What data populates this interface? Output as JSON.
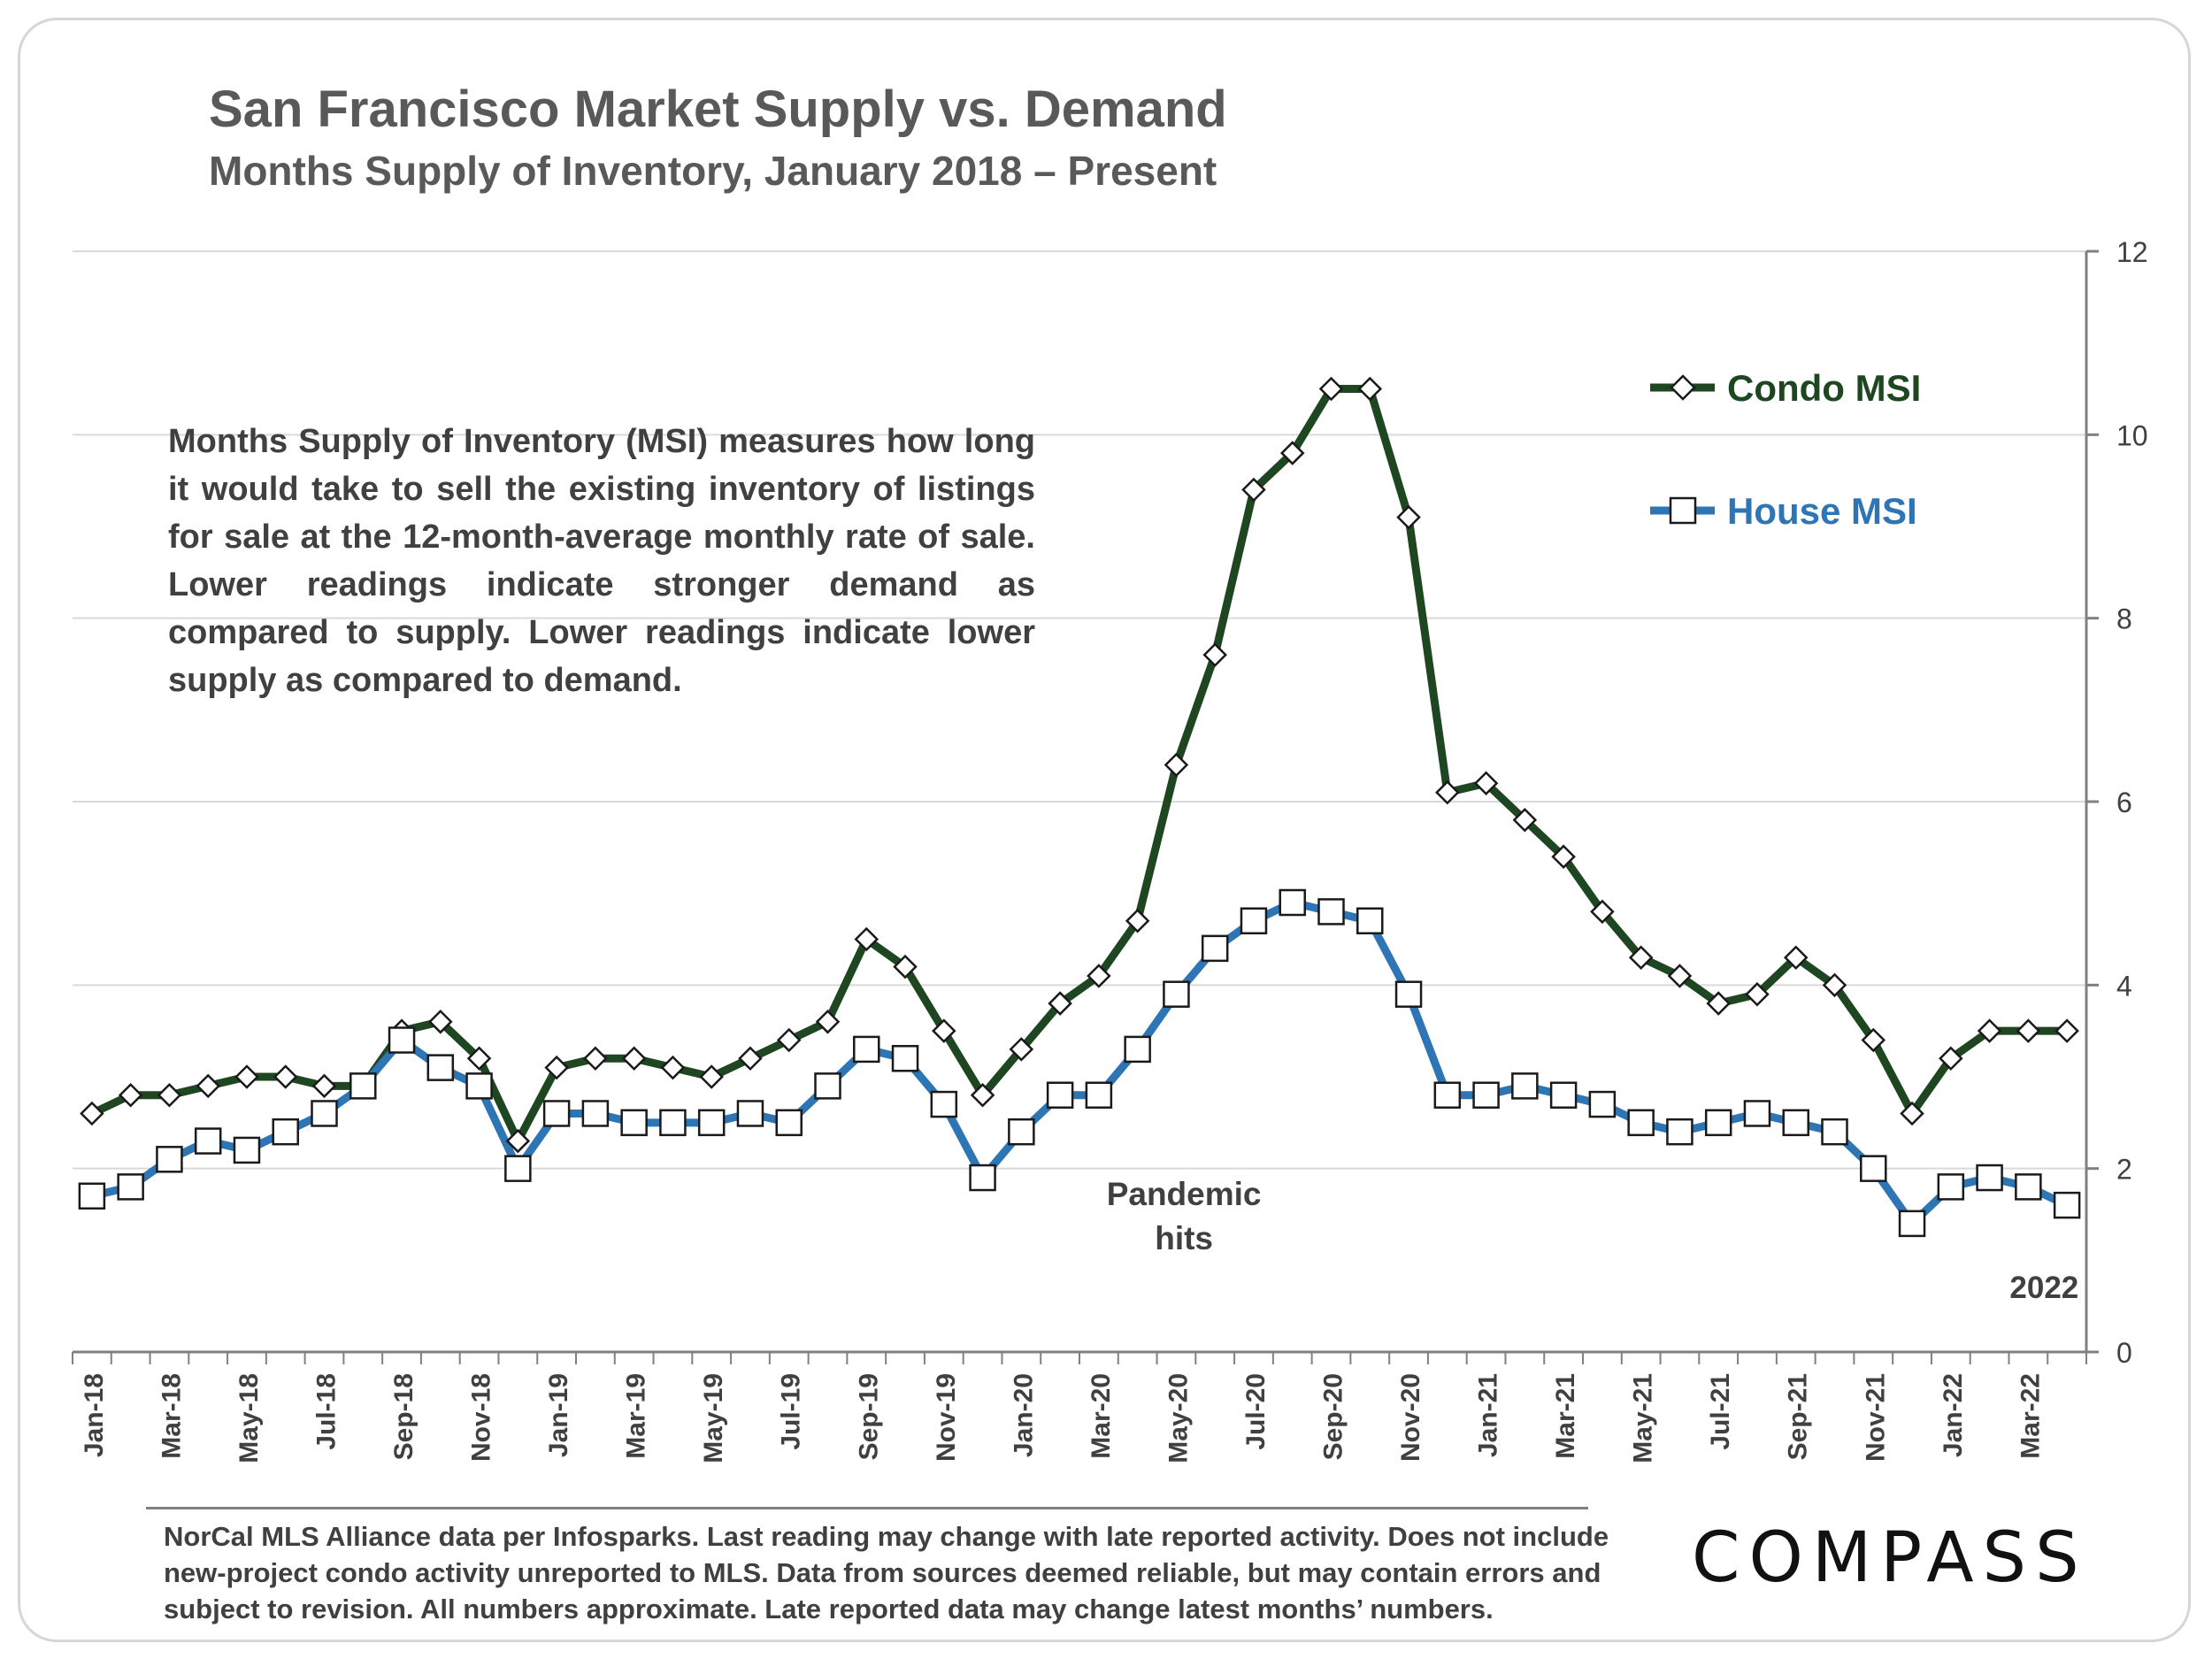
{
  "chart_data": {
    "type": "line",
    "title": "San Francisco Market Supply vs. Demand",
    "subtitle": "Months Supply of Inventory, January 2018 – Present",
    "x": [
      "Jan-18",
      "Feb-18",
      "Mar-18",
      "Apr-18",
      "May-18",
      "Jun-18",
      "Jul-18",
      "Aug-18",
      "Sep-18",
      "Oct-18",
      "Nov-18",
      "Dec-18",
      "Jan-19",
      "Feb-19",
      "Mar-19",
      "Apr-19",
      "May-19",
      "Jun-19",
      "Jul-19",
      "Aug-19",
      "Sep-19",
      "Oct-19",
      "Nov-19",
      "Dec-19",
      "Jan-20",
      "Feb-20",
      "Mar-20",
      "Apr-20",
      "May-20",
      "Jun-20",
      "Jul-20",
      "Aug-20",
      "Sep-20",
      "Oct-20",
      "Nov-20",
      "Dec-20",
      "Jan-21",
      "Feb-21",
      "Mar-21",
      "Apr-21",
      "May-21",
      "Jun-21",
      "Jul-21",
      "Aug-21",
      "Sep-21",
      "Oct-21",
      "Nov-21",
      "Dec-21",
      "Jan-22",
      "Feb-22",
      "Mar-22",
      "Apr-22"
    ],
    "tick_labels": [
      "Jan-18",
      "Mar-18",
      "May-18",
      "Jul-18",
      "Sep-18",
      "Nov-18",
      "Jan-19",
      "Mar-19",
      "May-19",
      "Jul-19",
      "Sep-19",
      "Nov-19",
      "Jan-20",
      "Mar-20",
      "May-20",
      "Jul-20",
      "Sep-20",
      "Nov-20",
      "Jan-21",
      "Mar-21",
      "May-21",
      "Jul-21",
      "Sep-21",
      "Nov-21",
      "Jan-22",
      "Mar-22"
    ],
    "series": [
      {
        "name": "Condo MSI",
        "color": "#1e4620",
        "marker": "diamond",
        "values": [
          2.6,
          2.8,
          2.8,
          2.9,
          3.0,
          3.0,
          2.9,
          2.9,
          3.5,
          3.6,
          3.2,
          2.3,
          3.1,
          3.2,
          3.2,
          3.1,
          3.0,
          3.2,
          3.4,
          3.6,
          4.5,
          4.2,
          3.5,
          2.8,
          3.3,
          3.8,
          4.1,
          4.7,
          6.4,
          7.6,
          9.4,
          9.8,
          10.5,
          10.5,
          9.1,
          6.1,
          6.2,
          5.8,
          5.4,
          4.8,
          4.3,
          4.1,
          3.8,
          3.9,
          4.3,
          4.0,
          3.4,
          2.6,
          3.2,
          3.5,
          3.5,
          3.5
        ]
      },
      {
        "name": "House MSI",
        "color": "#2e75b6",
        "marker": "square",
        "values": [
          1.7,
          1.8,
          2.1,
          2.3,
          2.2,
          2.4,
          2.6,
          2.9,
          3.4,
          3.1,
          2.9,
          2.0,
          2.6,
          2.6,
          2.5,
          2.5,
          2.5,
          2.6,
          2.5,
          2.9,
          3.3,
          3.2,
          2.7,
          1.9,
          2.4,
          2.8,
          2.8,
          3.3,
          3.9,
          4.4,
          4.7,
          4.9,
          4.8,
          4.7,
          3.9,
          2.8,
          2.8,
          2.9,
          2.8,
          2.7,
          2.5,
          2.4,
          2.5,
          2.6,
          2.5,
          2.4,
          2.0,
          1.4,
          1.8,
          1.9,
          1.8,
          1.6
        ]
      }
    ],
    "ylim": [
      0,
      12
    ],
    "yticks": [
      0,
      2,
      4,
      6,
      8,
      10,
      12
    ],
    "y_axis_side": "right",
    "grid": true,
    "legend": "top-right",
    "annotations": [
      {
        "text_lines": [
          "Pandemic",
          "hits"
        ],
        "near": "Feb-20"
      },
      {
        "text": "2022",
        "near": "Mar-22"
      }
    ],
    "description": "Months Supply of Inventory (MSI) measures how long it would take to sell the existing inventory of listings for sale at the 12-month-average monthly rate of sale. Lower readings indicate stronger demand as compared to supply. Lower readings indicate lower supply as compared to demand."
  },
  "footnote": "NorCal MLS Alliance data per Infosparks. Last reading may change with late reported activity. Does not include new-project condo activity unreported to MLS. Data from sources deemed reliable, but may contain errors and subject to revision. All numbers approximate. Late reported data may change latest months’ numbers.",
  "logo": "COMPASS",
  "colors": {
    "condo": "#1e4620",
    "house": "#2e75b6",
    "text": "#595959",
    "grid": "#d9d9d9"
  }
}
